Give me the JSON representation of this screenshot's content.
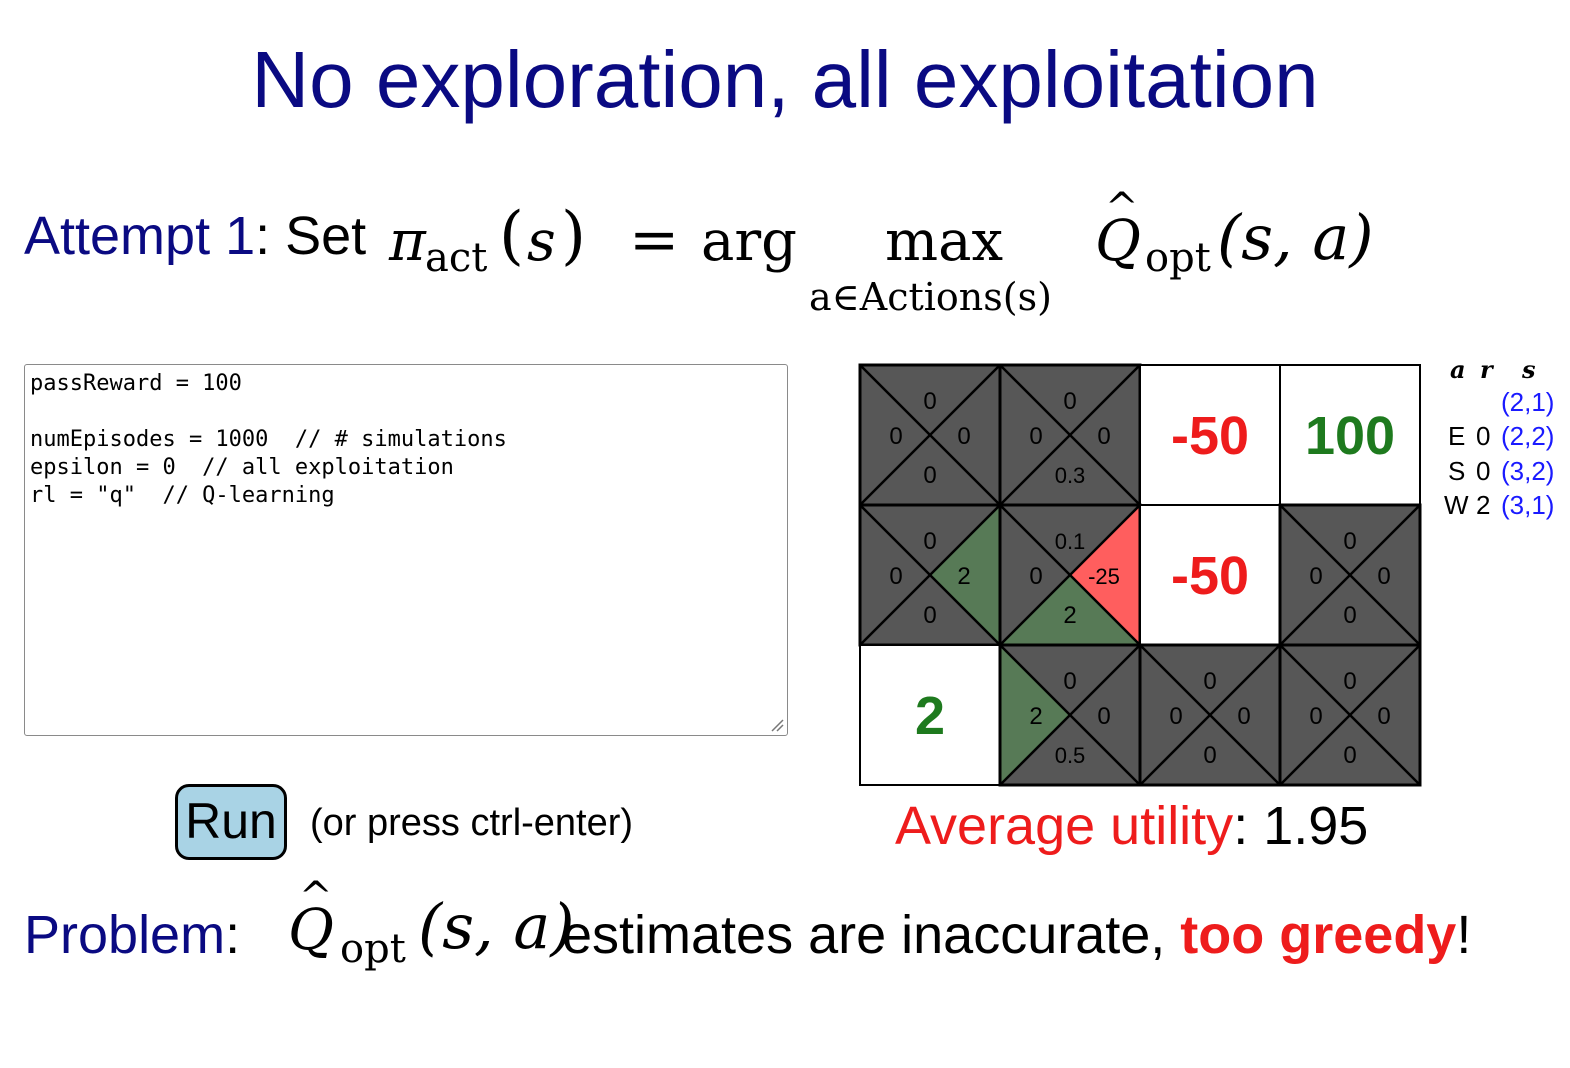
{
  "slide": {
    "title": "No exploration, all exploitation"
  },
  "attempt": {
    "label": "Attempt 1",
    "set_text": ": Set",
    "formula": {
      "pi": "π",
      "act": "act",
      "arg": "arg",
      "max": "max",
      "under": "a∈Actions(s)",
      "q": "Q",
      "opt": "opt",
      "open_s": "(",
      "s": "s",
      "close_s": ")",
      "eq": "=",
      "sa": "(s, a)"
    }
  },
  "code": {
    "lines": [
      "passReward = 100",
      "",
      "numEpisodes = 1000  // # simulations",
      "epsilon = 0  // all exploitation",
      "rl = \"q\"  // Q-learning"
    ]
  },
  "run": {
    "button_label": "Run",
    "hint": "(or press ctrl-enter)"
  },
  "grid": {
    "cells": [
      {
        "row": 0,
        "col": 0,
        "type": "q",
        "n": "0",
        "e": "0",
        "s": "0",
        "w": "0"
      },
      {
        "row": 0,
        "col": 1,
        "type": "q",
        "n": "0",
        "e": "0",
        "s": "0.3",
        "w": "0"
      },
      {
        "row": 0,
        "col": 2,
        "type": "terminal",
        "value": "-50",
        "color": "#ee1c1c"
      },
      {
        "row": 0,
        "col": 3,
        "type": "terminal",
        "value": "100",
        "color": "#1e7a1e"
      },
      {
        "row": 1,
        "col": 0,
        "type": "q",
        "n": "0",
        "e": "2",
        "s": "0",
        "w": "0",
        "hl": {
          "e": "#577a56"
        }
      },
      {
        "row": 1,
        "col": 1,
        "type": "q",
        "n": "0.1",
        "e": "-25",
        "s": "2",
        "w": "0",
        "hl": {
          "e": "#ff5e5e",
          "s": "#577a56"
        }
      },
      {
        "row": 1,
        "col": 2,
        "type": "terminal",
        "value": "-50",
        "color": "#ee1c1c"
      },
      {
        "row": 1,
        "col": 3,
        "type": "q",
        "n": "0",
        "e": "0",
        "s": "0",
        "w": "0"
      },
      {
        "row": 2,
        "col": 0,
        "type": "terminal",
        "value": "2",
        "color": "#1e7a1e"
      },
      {
        "row": 2,
        "col": 1,
        "type": "q",
        "n": "0",
        "e": "0",
        "s": "0.5",
        "w": "2",
        "hl": {
          "w": "#577a56"
        }
      },
      {
        "row": 2,
        "col": 2,
        "type": "q",
        "n": "0",
        "e": "0",
        "s": "0",
        "w": "0"
      },
      {
        "row": 2,
        "col": 3,
        "type": "q",
        "n": "0",
        "e": "0",
        "s": "0",
        "w": "0"
      }
    ],
    "colors": {
      "dark": "#575757",
      "green": "#577a56",
      "red": "#ff5e5e"
    }
  },
  "average": {
    "label": "Average utility",
    "sep": ":",
    "value": "1.95"
  },
  "episode": {
    "headers": [
      "a",
      "r",
      "s"
    ],
    "rows": [
      {
        "a": "",
        "r": "",
        "s": "(2,1)"
      },
      {
        "a": "E",
        "r": "0",
        "s": "(2,2)"
      },
      {
        "a": "S",
        "r": "0",
        "s": "(3,2)"
      },
      {
        "a": "W",
        "r": "2",
        "s": "(3,1)"
      }
    ]
  },
  "problem": {
    "label": "Problem",
    "colon": ":",
    "q": "Q",
    "opt": "opt",
    "sa": "(s, a)",
    "text": " estimates are inaccurate, ",
    "highlight": "too greedy",
    "end": "!"
  }
}
